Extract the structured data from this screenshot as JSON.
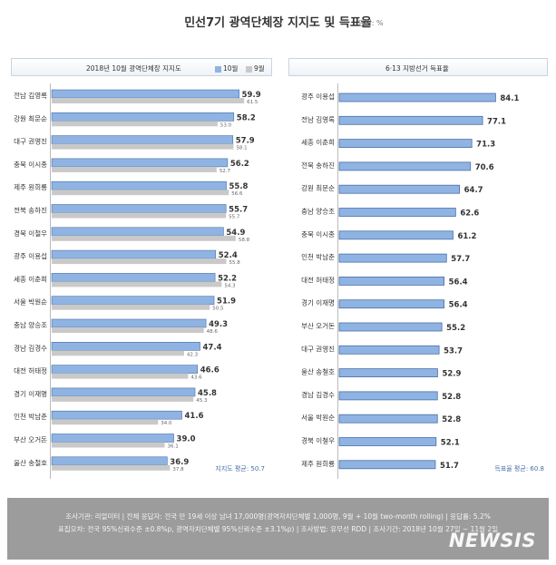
{
  "title": "민선7기 광역단체장 지지도 및 득표율",
  "unit": "단위: %",
  "colors": {
    "current": "#8fb4e3",
    "previous": "#c9c9c9",
    "bar_edge": "#4a6fa5"
  },
  "chart_data": [
    {
      "type": "bar",
      "orientation": "horizontal",
      "title": "2018년 10월 광역단체장 지지도",
      "legend": [
        "10월",
        "9월"
      ],
      "legend_position": "top-right",
      "categories": [
        "전남 김영록",
        "강원 최문순",
        "대구 권영진",
        "충북 이시종",
        "제주 원희룡",
        "전북 송하진",
        "경북 이철우",
        "광주 이용섭",
        "세종 이춘희",
        "서울 박원순",
        "충남 양승조",
        "경남 김경수",
        "대전 허태정",
        "경기 이재명",
        "인천 박남춘",
        "부산 오거돈",
        "울산 송철호"
      ],
      "series": [
        {
          "name": "10월",
          "values": [
            59.9,
            58.2,
            57.9,
            56.2,
            55.8,
            55.7,
            54.9,
            52.4,
            52.2,
            51.9,
            49.3,
            47.4,
            46.6,
            45.8,
            41.6,
            39.0,
            36.9
          ]
        },
        {
          "name": "9월",
          "values": [
            61.5,
            53.0,
            58.1,
            52.7,
            56.6,
            55.7,
            58.8,
            55.8,
            54.3,
            50.5,
            48.6,
            42.3,
            43.6,
            45.3,
            34.0,
            36.1,
            37.8
          ]
        }
      ],
      "annotation": "지지도 평균: 50.7"
    },
    {
      "type": "bar",
      "orientation": "horizontal",
      "title": "6·13 지방선거 득표율",
      "categories": [
        "광주 이용섭",
        "전남 김영록",
        "세종 이춘희",
        "전북 송하진",
        "강원 최문순",
        "충남 양승조",
        "충북 이시종",
        "인천 박남춘",
        "대전 허태정",
        "경기 이재명",
        "부산 오거돈",
        "대구 권영진",
        "울산 송철호",
        "경남 김경수",
        "서울 박원순",
        "경북 이철우",
        "제주 원희룡"
      ],
      "series": [
        {
          "values": [
            84.1,
            77.1,
            71.3,
            70.6,
            64.7,
            62.6,
            61.2,
            57.7,
            56.4,
            56.4,
            55.2,
            53.7,
            52.9,
            52.8,
            52.8,
            52.1,
            51.7
          ]
        }
      ],
      "annotation": "득표율 평균: 60.8"
    }
  ],
  "footer": {
    "line1": "조사기관: 리얼미터  |  전체 응답자: 전국 만 19세 이상 남녀 17,000명(광역자치단체별 1,000명, 9월 + 10월 two-month rolling)  |  응답률: 5.2%",
    "line2": "표집오차: 전국 95%신뢰수준 ±0.8%p, 광역자치단체별 95%신뢰수준 ±3.1%p)  |  조사방법: 유무선 RDD  |  조사기간: 2018년 10월 27일 ~ 11월 2일"
  },
  "watermark": "NEWSIS"
}
